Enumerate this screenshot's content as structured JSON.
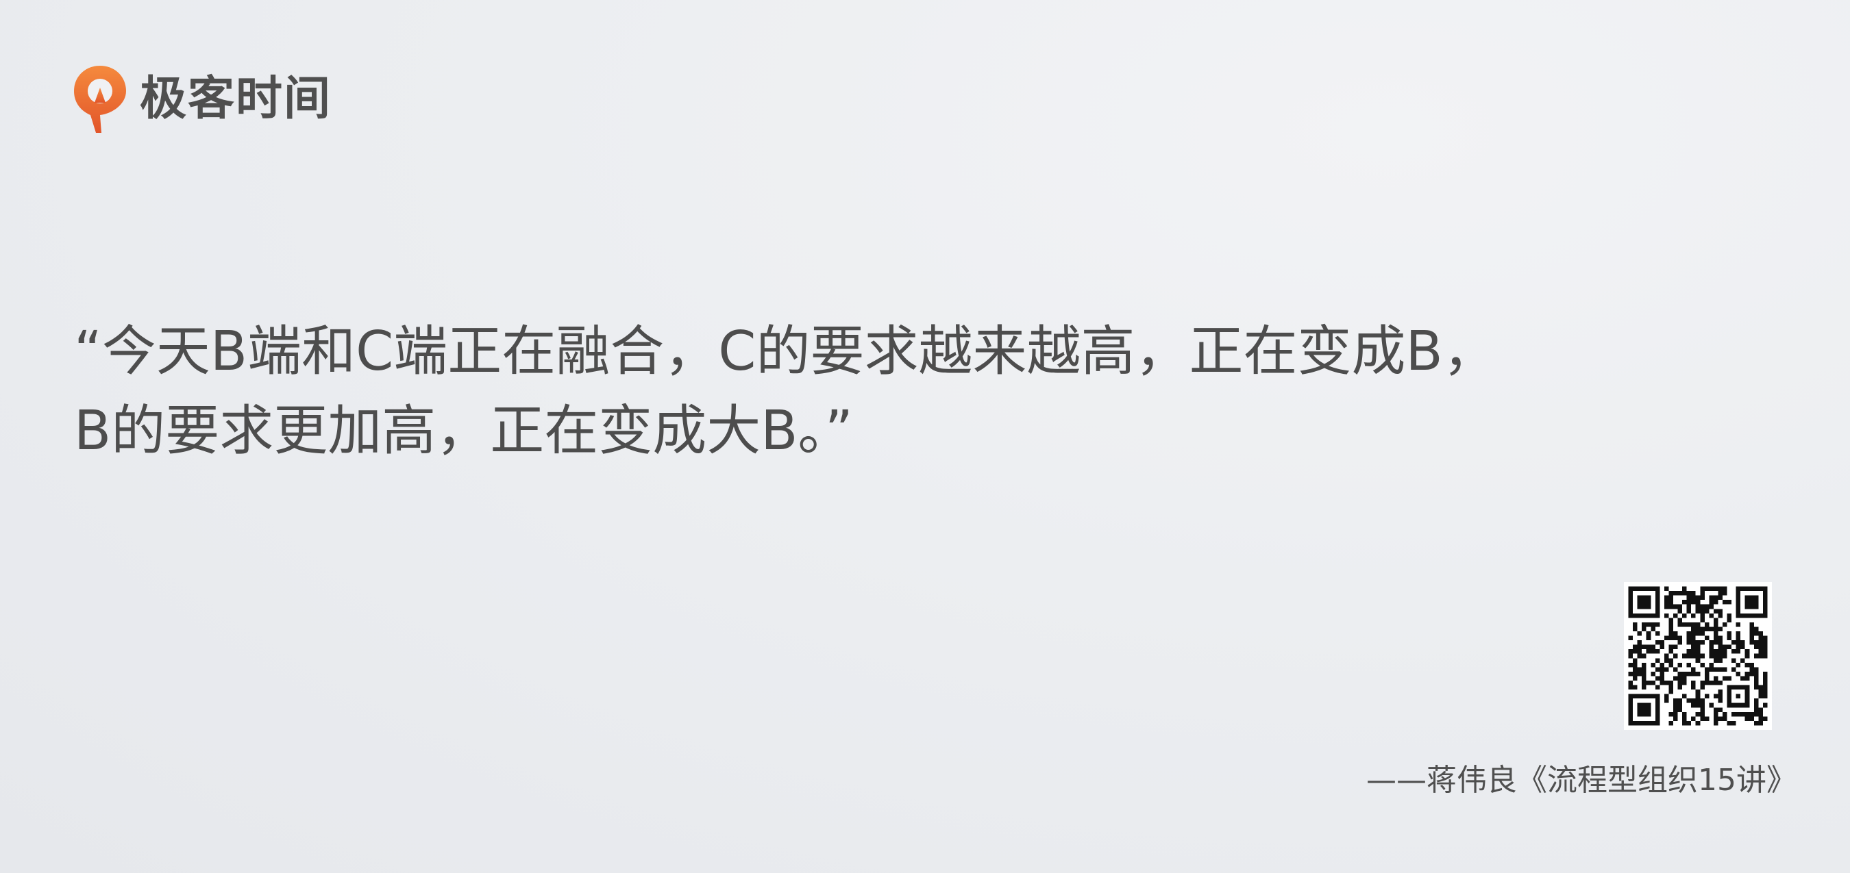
{
  "brand": {
    "name": "极客时间",
    "logo_icon": "geektime-logo-icon",
    "accent_color": "#ea6b2b"
  },
  "quote": {
    "lines": [
      "“今天B端和C端正在融合，C的要求越来越高，正在变成B，",
      "B的要求更加高，正在变成大B。”"
    ]
  },
  "qr_code": {
    "icon": "qr-code-icon"
  },
  "attribution": {
    "text": "——蒋伟良《流程型组织15讲》"
  }
}
